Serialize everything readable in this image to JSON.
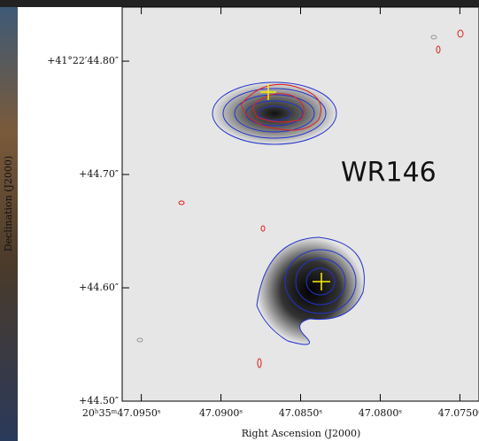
{
  "chart_data": {
    "type": "contour-map",
    "x_label": "Right Ascension (J2000)",
    "y_label": "Declination (J2000)",
    "annotation": "WR146",
    "xlim": [
      47.0962,
      47.0738
    ],
    "ylim": [
      44.5,
      44.8477
    ],
    "xticks": [
      {
        "value": 47.095,
        "label": "20ʰ35ᵐ47.0950ˢ"
      },
      {
        "value": 47.09,
        "label": "47.0900ˢ"
      },
      {
        "value": 47.085,
        "label": "47.0850ˢ"
      },
      {
        "value": 47.08,
        "label": "47.0800ˢ"
      },
      {
        "value": 47.075,
        "label": "47.0750ˢ"
      }
    ],
    "yticks": [
      {
        "value": 44.5,
        "label": "+44.50″"
      },
      {
        "value": 44.6,
        "label": "+44.60″"
      },
      {
        "value": 44.7,
        "label": "+44.70″"
      },
      {
        "value": 44.8,
        "label": "+41°22′44.80″"
      }
    ]
  }
}
